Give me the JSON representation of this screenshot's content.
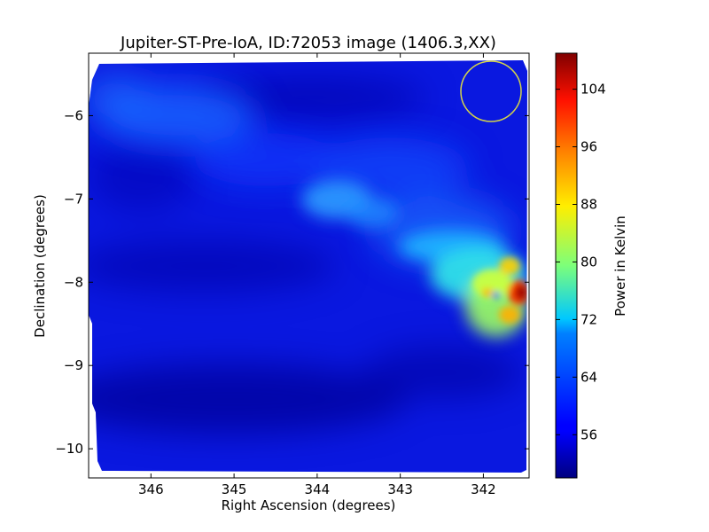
{
  "chart_data": {
    "type": "heatmap",
    "title": "Jupiter-ST-Pre-IoA, ID:72053 image (1406.3,XX)",
    "xlabel": "Right Ascension (degrees)",
    "ylabel": "Declination (degrees)",
    "x_reversed": true,
    "xlim": [
      346.75,
      341.45
    ],
    "ylim": [
      -10.35,
      -5.25
    ],
    "x_ticks": [
      346,
      345,
      344,
      343,
      342
    ],
    "x_tick_labels": [
      "346",
      "345",
      "344",
      "343",
      "342"
    ],
    "y_ticks": [
      -6,
      -7,
      -8,
      -9,
      -10
    ],
    "y_tick_labels": [
      "−6",
      "−7",
      "−8",
      "−9",
      "−10"
    ],
    "colorbar": {
      "label": "Power in Kelvin",
      "colormap": "jet",
      "range": [
        50,
        109
      ],
      "ticks": [
        56,
        64,
        72,
        80,
        88,
        96,
        104
      ],
      "tick_labels": [
        "56",
        "64",
        "72",
        "80",
        "88",
        "96",
        "104"
      ]
    },
    "features": [
      {
        "kind": "bright-peak",
        "ra": 341.55,
        "dec": -8.1,
        "value": 106
      },
      {
        "kind": "emission-ridge",
        "from": {
          "ra": 343.5,
          "dec": -7.0
        },
        "to": {
          "ra": 341.6,
          "dec": -8.3
        },
        "value": 85
      },
      {
        "kind": "diffuse-band",
        "from": {
          "ra": 346.5,
          "dec": -6.0
        },
        "to": {
          "ra": 341.6,
          "dec": -8.3
        },
        "value": 62
      },
      {
        "kind": "background",
        "value": 55
      }
    ],
    "beam_circle": {
      "ra": 341.85,
      "dec": -5.65,
      "radius_deg": 0.37,
      "color": "#d4d44a"
    }
  }
}
